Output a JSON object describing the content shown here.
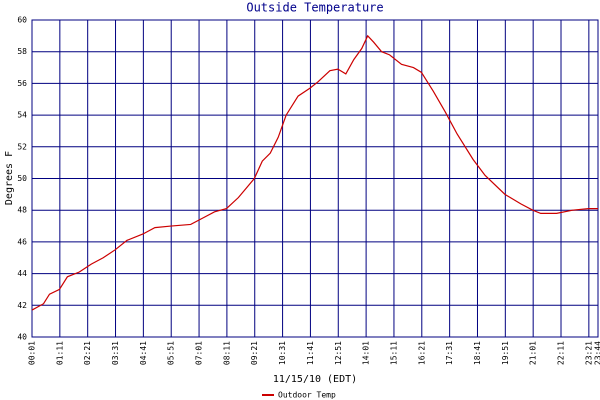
{
  "chart_data": {
    "type": "line",
    "title": "Outside Temperature",
    "ylabel": "Degrees F",
    "xlabel": "11/15/10 (EDT)",
    "x": [
      1,
      30,
      45,
      70,
      90,
      120,
      150,
      180,
      210,
      240,
      280,
      310,
      350,
      400,
      430,
      460,
      490,
      520,
      560,
      580,
      600,
      620,
      640,
      670,
      700,
      720,
      750,
      770,
      790,
      810,
      830,
      845,
      860,
      880,
      900,
      930,
      960,
      980,
      1010,
      1040,
      1070,
      1110,
      1140,
      1190,
      1230,
      1260,
      1280,
      1320,
      1360,
      1400,
      1424
    ],
    "series": [
      {
        "name": "Outdoor Temp",
        "color": "#cc0000",
        "values": [
          41.7,
          42.1,
          42.7,
          43.0,
          43.8,
          44.1,
          44.6,
          45.0,
          45.5,
          46.1,
          46.5,
          46.9,
          47.0,
          47.1,
          47.5,
          47.9,
          48.1,
          48.8,
          50.0,
          51.1,
          51.6,
          52.6,
          54.0,
          55.2,
          55.7,
          56.1,
          56.8,
          56.9,
          56.6,
          57.5,
          58.2,
          59.0,
          58.6,
          58.0,
          57.8,
          57.2,
          57.0,
          56.7,
          55.5,
          54.2,
          52.8,
          51.2,
          50.2,
          49.0,
          48.4,
          48.0,
          47.8,
          47.8,
          48.0,
          48.1,
          48.1
        ]
      }
    ],
    "xlim": [
      1,
      1424
    ],
    "xticks": [
      {
        "value": 1,
        "label": "00:01"
      },
      {
        "value": 71,
        "label": "01:11"
      },
      {
        "value": 141,
        "label": "02:21"
      },
      {
        "value": 211,
        "label": "03:31"
      },
      {
        "value": 281,
        "label": "04:41"
      },
      {
        "value": 351,
        "label": "05:51"
      },
      {
        "value": 421,
        "label": "07:01"
      },
      {
        "value": 491,
        "label": "08:11"
      },
      {
        "value": 561,
        "label": "09:21"
      },
      {
        "value": 631,
        "label": "10:31"
      },
      {
        "value": 701,
        "label": "11:41"
      },
      {
        "value": 771,
        "label": "12:51"
      },
      {
        "value": 841,
        "label": "14:01"
      },
      {
        "value": 911,
        "label": "15:11"
      },
      {
        "value": 981,
        "label": "16:21"
      },
      {
        "value": 1051,
        "label": "17:31"
      },
      {
        "value": 1121,
        "label": "18:41"
      },
      {
        "value": 1191,
        "label": "19:51"
      },
      {
        "value": 1261,
        "label": "21:01"
      },
      {
        "value": 1331,
        "label": "22:11"
      },
      {
        "value": 1401,
        "label": "23:21"
      },
      {
        "value": 1424,
        "label": "23:44"
      }
    ],
    "ylim": [
      40,
      60
    ],
    "yticks": [
      40,
      42,
      44,
      46,
      48,
      50,
      52,
      54,
      56,
      58,
      60
    ],
    "grid": true,
    "grid_color": "#000080",
    "legend": "bottom"
  }
}
